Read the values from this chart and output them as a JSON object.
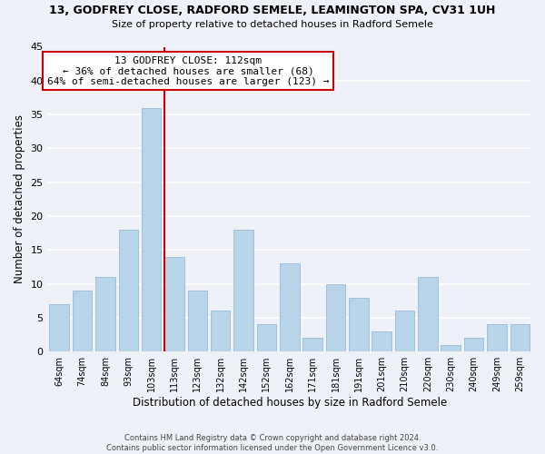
{
  "title": "13, GODFREY CLOSE, RADFORD SEMELE, LEAMINGTON SPA, CV31 1UH",
  "subtitle": "Size of property relative to detached houses in Radford Semele",
  "xlabel": "Distribution of detached houses by size in Radford Semele",
  "ylabel": "Number of detached properties",
  "footer_line1": "Contains HM Land Registry data © Crown copyright and database right 2024.",
  "footer_line2": "Contains public sector information licensed under the Open Government Licence v3.0.",
  "bar_labels": [
    "64sqm",
    "74sqm",
    "84sqm",
    "93sqm",
    "103sqm",
    "113sqm",
    "123sqm",
    "132sqm",
    "142sqm",
    "152sqm",
    "162sqm",
    "171sqm",
    "181sqm",
    "191sqm",
    "201sqm",
    "210sqm",
    "220sqm",
    "230sqm",
    "240sqm",
    "249sqm",
    "259sqm"
  ],
  "bar_values": [
    7,
    9,
    11,
    18,
    36,
    14,
    9,
    6,
    18,
    4,
    13,
    2,
    10,
    8,
    3,
    6,
    11,
    1,
    2,
    4,
    4
  ],
  "bar_color": "#b8d4e8",
  "bar_edge_color": "#b8d4e8",
  "background_color": "#eef2f8",
  "grid_color": "#ffffff",
  "marker_index": 5,
  "annotation_title": "13 GODFREY CLOSE: 112sqm",
  "annotation_line1": "← 36% of detached houses are smaller (68)",
  "annotation_line2": "64% of semi-detached houses are larger (123) →",
  "annotation_box_color": "#ffffff",
  "annotation_border_color": "#cc0000",
  "marker_line_color": "#cc0000",
  "ylim": [
    0,
    45
  ],
  "yticks": [
    0,
    5,
    10,
    15,
    20,
    25,
    30,
    35,
    40,
    45
  ]
}
